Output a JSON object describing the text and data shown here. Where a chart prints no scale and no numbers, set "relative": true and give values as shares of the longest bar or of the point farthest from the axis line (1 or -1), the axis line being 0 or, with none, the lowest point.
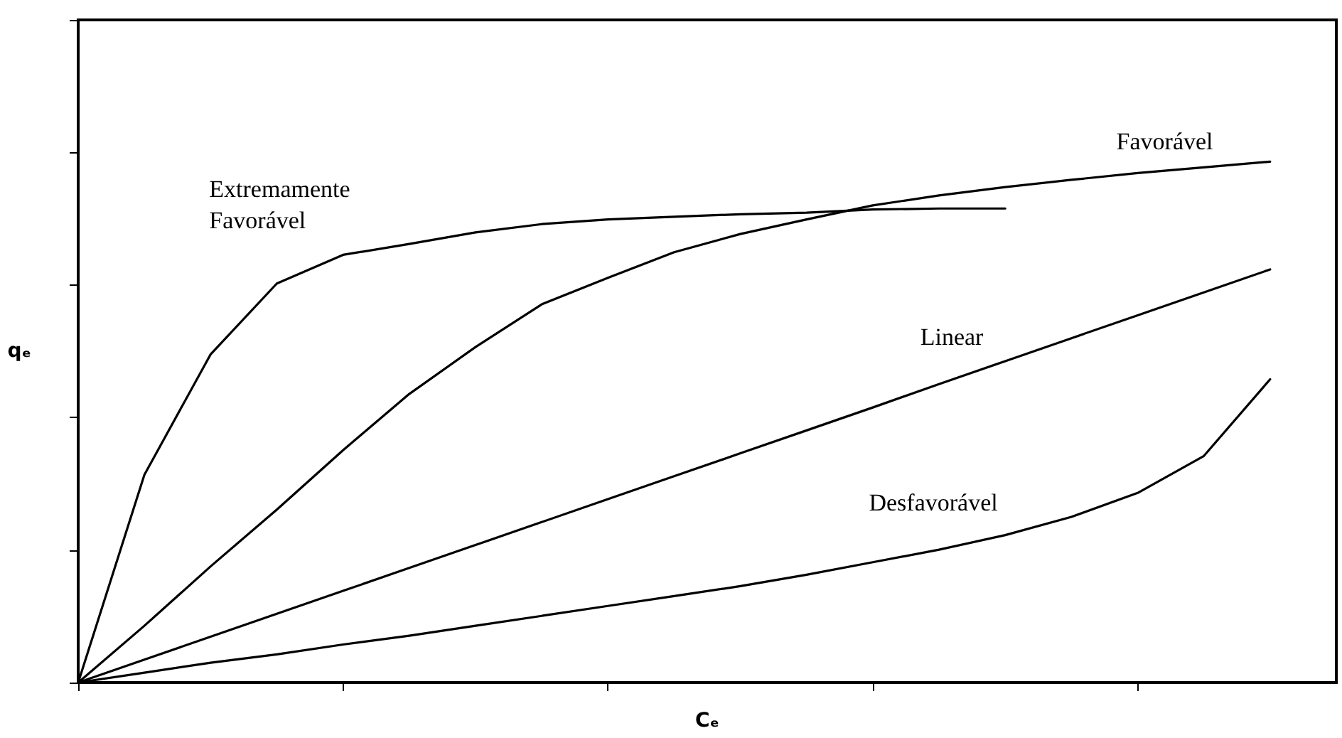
{
  "chart_data": {
    "type": "line",
    "relative": true,
    "xlabel": "Cₑ",
    "ylabel": "qₑ",
    "categories": [
      null,
      null,
      null,
      null,
      null,
      null,
      null,
      null,
      null,
      null,
      null,
      null,
      null,
      null,
      null,
      null,
      null,
      null,
      null,
      null
    ],
    "marker": "none",
    "line_style": "solid",
    "grid": false,
    "legend": false,
    "series": [
      {
        "name": "Extremamente\nFavorável",
        "color": "#000000",
        "values": [
          0,
          0.399,
          0.63,
          0.766,
          0.821,
          0.842,
          0.864,
          0.88,
          0.889,
          0.894,
          0.899,
          0.902,
          0.908,
          0.91,
          0.91,
          null,
          null,
          null,
          null,
          null
        ]
      },
      {
        "name": "Favorável",
        "color": "#000000",
        "values": [
          0,
          0.109,
          0.223,
          0.332,
          0.446,
          0.554,
          0.644,
          0.726,
          0.777,
          0.826,
          0.861,
          0.889,
          0.916,
          0.935,
          0.951,
          0.965,
          0.978,
          0.989,
          1,
          null
        ]
      },
      {
        "name": "Linear",
        "color": "#000000",
        "values": [
          0,
          0.044,
          0.088,
          0.132,
          0.176,
          0.22,
          0.264,
          0.308,
          0.352,
          0.396,
          0.44,
          0.484,
          0.528,
          0.573,
          0.617,
          0.661,
          0.705,
          0.749,
          0.793,
          null
        ]
      },
      {
        "name": "Desfavorável",
        "color": "#000000",
        "values": [
          0,
          0.019,
          0.038,
          0.054,
          0.073,
          0.09,
          0.109,
          0.128,
          0.147,
          0.166,
          0.185,
          0.207,
          0.231,
          0.255,
          0.283,
          0.318,
          0.364,
          0.435,
          0.582,
          null
        ]
      }
    ]
  }
}
